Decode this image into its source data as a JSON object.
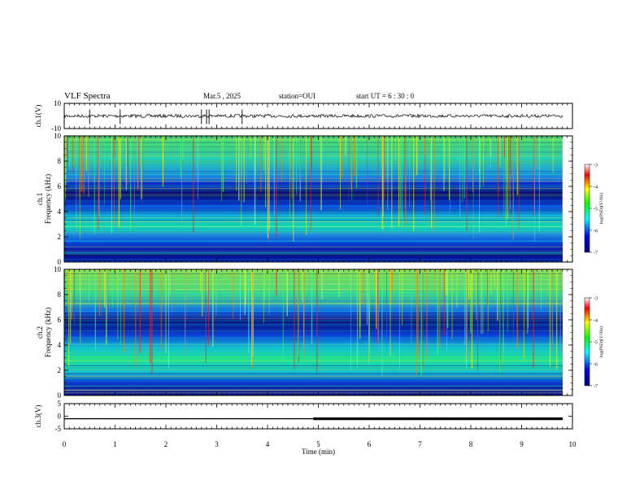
{
  "header": {
    "title": "VLF Spectra",
    "date": "Mar.5 , 2025",
    "station": "station=OUI",
    "start": "start UT = 6 : 30 : 0"
  },
  "chart_data": [
    {
      "type": "line",
      "panel": "ch1-waveform",
      "ylabel": "ch.1(V)",
      "ylim": [
        -10,
        10
      ],
      "yticks": [
        "10",
        "-10"
      ],
      "xlim": [
        0,
        10
      ],
      "baseline": 0,
      "spikes_min": [
        0.5,
        1.1,
        2.7,
        2.8,
        2.85,
        3.5
      ],
      "color": "#000000"
    },
    {
      "type": "heatmap",
      "panel": "ch1-spectrogram",
      "ylabel": "ch.1\nFrequency (kHz)",
      "ylim": [
        0,
        10
      ],
      "yticks": [
        "0",
        "2",
        "4",
        "6",
        "8",
        "10"
      ],
      "xlim": [
        0,
        10
      ],
      "colorbar": {
        "label": "log(PSD)(V²/Hz)",
        "range": [
          -7,
          -3
        ],
        "ticks": [
          "-3",
          "-4",
          "-5",
          "-6",
          "-7"
        ]
      }
    },
    {
      "type": "heatmap",
      "panel": "ch2-spectrogram",
      "ylabel": "ch.2\nFrequency (kHz)",
      "ylim": [
        0,
        10
      ],
      "yticks": [
        "0",
        "2",
        "4",
        "6",
        "8",
        "10"
      ],
      "xlim": [
        0,
        10
      ],
      "colorbar": {
        "label": "log(PSD)(V²/Hz)",
        "range": [
          -7,
          -3
        ],
        "ticks": [
          "-3",
          "-4",
          "-5",
          "-6",
          "-7"
        ]
      }
    },
    {
      "type": "line",
      "panel": "ch3-waveform",
      "ylabel": "ch.3(V)",
      "ylim": [
        -5,
        5
      ],
      "yticks": [
        "5",
        "0",
        "-5"
      ],
      "xlim": [
        0,
        10
      ],
      "level": -1,
      "thick_from_min": 4.9,
      "xlabel": "Time (min)",
      "xticks": [
        "0",
        "1",
        "2",
        "3",
        "4",
        "5",
        "6",
        "7",
        "8",
        "9",
        "10"
      ]
    }
  ]
}
